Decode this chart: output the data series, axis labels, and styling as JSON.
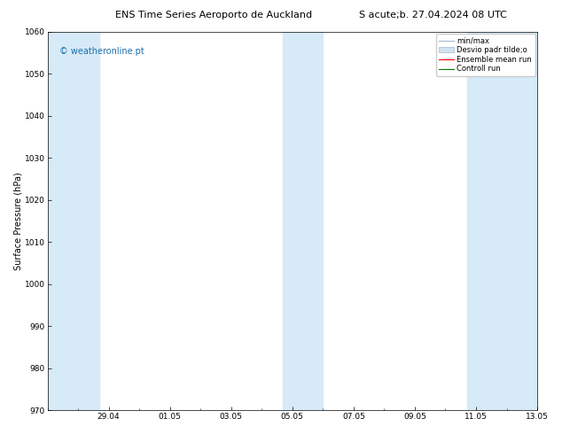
{
  "title_left": "ENS Time Series Aeroporto de Auckland",
  "title_right": "S acute;b. 27.04.2024 08 UTC",
  "ylabel": "Surface Pressure (hPa)",
  "ylim": [
    970,
    1060
  ],
  "yticks": [
    970,
    980,
    990,
    1000,
    1010,
    1020,
    1030,
    1040,
    1050,
    1060
  ],
  "xtick_labels": [
    "29.04",
    "01.05",
    "03.05",
    "05.05",
    "07.05",
    "09.05",
    "11.05",
    "13.05"
  ],
  "xtick_positions": [
    2,
    4,
    6,
    8,
    10,
    12,
    14,
    16
  ],
  "xlim": [
    0,
    16
  ],
  "band_ranges": [
    [
      0.0,
      1.7
    ],
    [
      7.7,
      9.0
    ],
    [
      13.7,
      16.2
    ]
  ],
  "shaded_color": "#d6eaf8",
  "watermark": "© weatheronline.pt",
  "watermark_color": "#1a6fa8",
  "legend_min_max_color": "#a8b8c8",
  "legend_std_color": "#d0e4f0",
  "bg_color": "#ffffff",
  "title_fontsize": 8,
  "axis_label_fontsize": 7,
  "tick_fontsize": 6.5,
  "legend_fontsize": 6,
  "watermark_fontsize": 7
}
